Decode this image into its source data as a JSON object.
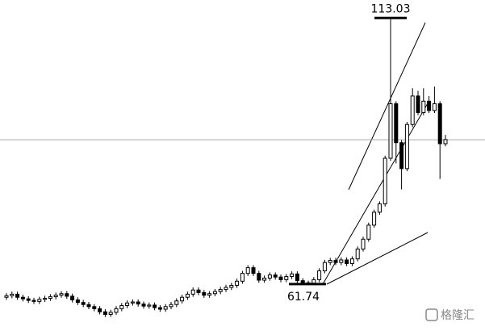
{
  "chart_data": {
    "type": "candlestick",
    "open": [
      59.2,
      59.5,
      59.8,
      59.2,
      58.9,
      58.6,
      58.4,
      58.8,
      59.0,
      59.3,
      59.6,
      59.9,
      59.4,
      58.7,
      58.2,
      57.8,
      57.4,
      57.0,
      56.4,
      55.9,
      56.3,
      57.0,
      57.6,
      58.1,
      58.3,
      57.9,
      57.5,
      57.7,
      57.2,
      56.9,
      57.4,
      57.8,
      58.5,
      59.2,
      59.8,
      60.6,
      60.1,
      59.6,
      59.9,
      60.3,
      60.7,
      61.1,
      61.5,
      62.3,
      63.8,
      64.9,
      63.8,
      62.5,
      62.9,
      63.5,
      63.1,
      62.6,
      63.2,
      63.7,
      62.4,
      62.0,
      61.9,
      62.6,
      64.3,
      65.9,
      66.3,
      65.9,
      66.4,
      65.7,
      66.6,
      68.5,
      70.4,
      73.1,
      75.6,
      77.2,
      86.0,
      96.5,
      89.0,
      84.0,
      92.5,
      98.0,
      94.8,
      97.0,
      95.2,
      96.5,
      88.8
    ],
    "high": [
      60.0,
      60.3,
      60.3,
      59.7,
      59.4,
      59.1,
      59.3,
      59.5,
      59.8,
      60.1,
      60.4,
      60.4,
      59.9,
      59.2,
      58.7,
      58.3,
      57.9,
      57.5,
      56.9,
      56.8,
      57.5,
      58.1,
      58.6,
      58.8,
      58.8,
      58.4,
      58.2,
      58.2,
      57.7,
      57.9,
      58.3,
      59.0,
      59.7,
      60.3,
      61.1,
      61.1,
      60.6,
      60.4,
      60.8,
      61.2,
      61.6,
      62.0,
      62.8,
      64.3,
      65.4,
      65.4,
      64.3,
      63.4,
      64.0,
      64.0,
      63.6,
      63.7,
      64.2,
      64.2,
      62.9,
      62.4,
      63.1,
      64.8,
      66.4,
      66.8,
      66.8,
      66.9,
      66.9,
      67.1,
      69.0,
      70.9,
      73.6,
      76.1,
      77.7,
      86.5,
      113.03,
      97.0,
      89.5,
      93.0,
      99.5,
      99.0,
      99.5,
      98.0,
      99.8,
      97.0,
      90.5
    ],
    "low": [
      58.7,
      59.0,
      58.7,
      58.4,
      58.1,
      57.9,
      57.9,
      58.3,
      58.5,
      58.8,
      59.1,
      58.9,
      58.2,
      57.7,
      57.3,
      56.9,
      56.5,
      55.9,
      55.4,
      55.4,
      55.8,
      56.5,
      57.1,
      57.6,
      57.4,
      57.0,
      57.0,
      56.7,
      56.4,
      56.4,
      56.9,
      57.3,
      58.0,
      58.7,
      59.3,
      59.6,
      59.1,
      59.1,
      59.4,
      59.8,
      60.2,
      60.6,
      61.0,
      61.8,
      63.3,
      63.3,
      62.0,
      62.0,
      62.4,
      62.6,
      62.1,
      62.1,
      62.7,
      61.9,
      61.85,
      61.74,
      61.8,
      62.1,
      63.8,
      65.4,
      65.4,
      65.4,
      65.2,
      65.2,
      66.1,
      68.0,
      69.9,
      72.6,
      75.1,
      76.7,
      85.5,
      85.0,
      80.0,
      83.5,
      92.0,
      94.3,
      94.3,
      94.7,
      94.7,
      82.0,
      88.3
    ],
    "close": [
      59.5,
      59.8,
      59.2,
      58.9,
      58.6,
      58.4,
      58.8,
      59.0,
      59.3,
      59.6,
      59.9,
      59.4,
      58.7,
      58.2,
      57.8,
      57.4,
      57.0,
      56.4,
      55.9,
      56.3,
      57.0,
      57.6,
      58.1,
      58.3,
      57.9,
      57.5,
      57.7,
      57.2,
      56.9,
      57.4,
      57.8,
      58.5,
      59.2,
      59.8,
      60.6,
      60.1,
      59.6,
      59.9,
      60.3,
      60.7,
      61.1,
      61.5,
      62.3,
      63.8,
      64.9,
      63.8,
      62.5,
      62.9,
      63.5,
      63.1,
      62.6,
      63.2,
      63.7,
      62.4,
      62.0,
      61.9,
      62.6,
      64.3,
      65.9,
      66.3,
      65.9,
      66.4,
      65.7,
      66.6,
      68.5,
      70.4,
      73.1,
      75.6,
      77.2,
      86.0,
      96.5,
      89.0,
      84.0,
      92.5,
      98.0,
      94.8,
      97.0,
      95.2,
      96.5,
      88.8,
      89.6
    ],
    "up_color": "#ffffff",
    "down_color": "#000000",
    "ylim": [
      52.7,
      116.5
    ],
    "hline": 89.56,
    "max_label": 113.03,
    "min_label": 61.74,
    "watermark": "格隆汇"
  }
}
